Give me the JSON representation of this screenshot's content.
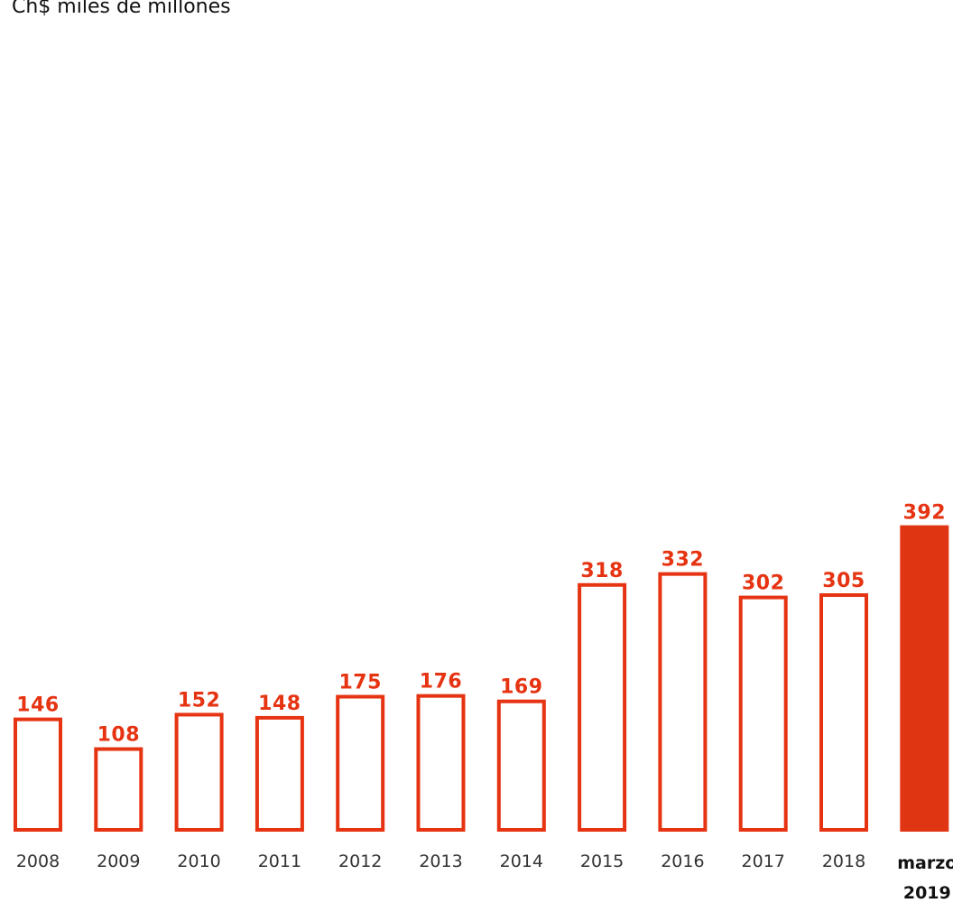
{
  "chart_data": {
    "type": "bar",
    "unit_label": "Ch$ miles de millones",
    "categories": [
      "2008",
      "2009",
      "2010",
      "2011",
      "2012",
      "2013",
      "2014",
      "2015",
      "2016",
      "2017",
      "2018",
      "marzo 2019"
    ],
    "values": [
      146,
      108,
      152,
      148,
      175,
      176,
      169,
      318,
      332,
      302,
      305,
      392
    ],
    "highlight_index": 11,
    "data_labels": true,
    "grid": false,
    "legend": false,
    "colors": {
      "accent": "#e63312",
      "bar_fill": "#ffffff",
      "highlight_fill": "#e03512",
      "label_text": "#333333"
    }
  }
}
